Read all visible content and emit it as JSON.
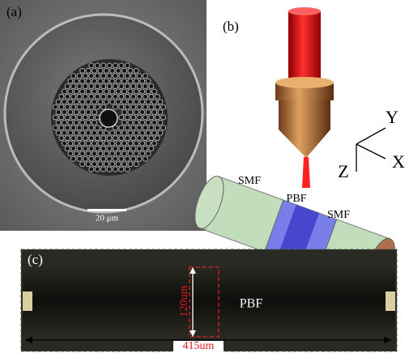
{
  "panels": [
    {
      "label": "(a)",
      "scale_bar": "20 μm"
    },
    {
      "label": "(b)",
      "axes": {
        "y": "Y",
        "z": "Z",
        "x": "X"
      },
      "segments": [
        "SMF",
        "PBF",
        "SMF"
      ]
    },
    {
      "label": "(c)",
      "fiber": "PBF",
      "height": "120um",
      "length": "415um"
    }
  ]
}
